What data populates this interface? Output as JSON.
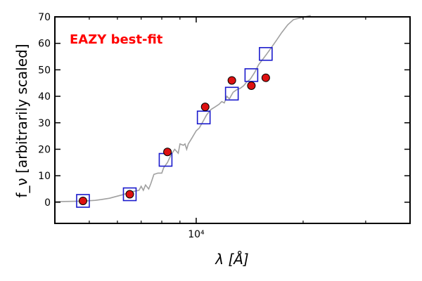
{
  "chart_data": {
    "type": "scatter",
    "title": "",
    "xlabel": "λ [Å]",
    "ylabel": "f_ν [arbitrarily scaled]",
    "x_scale": "log",
    "xlim": [
      4000,
      40000
    ],
    "ylim": [
      -8,
      70
    ],
    "y_ticks": [
      0,
      10,
      20,
      30,
      40,
      50,
      60,
      70
    ],
    "y_tick_labels": [
      "0",
      "10",
      "20",
      "30",
      "40",
      "50",
      "60",
      "70"
    ],
    "x_major_tick": {
      "value": 10000,
      "label": "10⁴"
    },
    "x_minor_ticks": [
      5000,
      6000,
      7000,
      8000,
      9000,
      20000,
      30000
    ],
    "grid": false,
    "annotation": {
      "text": "EAZY best-fit",
      "color": "#ff0000"
    },
    "colors": {
      "spectrum": "#a0a0a0",
      "observed": "#dd1111",
      "model": "#1a1acc"
    },
    "series": [
      {
        "marker": "circle",
        "points": [
          {
            "x": 4800,
            "y": 0.5
          },
          {
            "x": 6500,
            "y": 3
          },
          {
            "x": 8300,
            "y": 19
          },
          {
            "x": 10600,
            "y": 36
          },
          {
            "x": 12600,
            "y": 46
          },
          {
            "x": 14300,
            "y": 44
          },
          {
            "x": 15700,
            "y": 47
          }
        ]
      },
      {
        "marker": "square",
        "points": [
          {
            "x": 4800,
            "y": 0.5
          },
          {
            "x": 6500,
            "y": 3
          },
          {
            "x": 8200,
            "y": 16
          },
          {
            "x": 10500,
            "y": 32
          },
          {
            "x": 12600,
            "y": 41
          },
          {
            "x": 14300,
            "y": 48
          },
          {
            "x": 15700,
            "y": 56
          }
        ]
      },
      {
        "marker": "line",
        "points": [
          [
            4000,
            0.2
          ],
          [
            4400,
            0.3
          ],
          [
            4800,
            0.4
          ],
          [
            5200,
            0.7
          ],
          [
            5400,
            1
          ],
          [
            5700,
            1.5
          ],
          [
            6000,
            2.3
          ],
          [
            6200,
            2.8
          ],
          [
            6600,
            4
          ],
          [
            6900,
            4.5
          ],
          [
            7000,
            6
          ],
          [
            7100,
            4.5
          ],
          [
            7200,
            6.5
          ],
          [
            7350,
            5
          ],
          [
            7450,
            7
          ],
          [
            7600,
            10.5
          ],
          [
            7800,
            11
          ],
          [
            8000,
            11
          ],
          [
            8100,
            13
          ],
          [
            8300,
            15
          ],
          [
            8500,
            18
          ],
          [
            8700,
            20
          ],
          [
            8900,
            18.5
          ],
          [
            9000,
            22
          ],
          [
            9200,
            21.5
          ],
          [
            9300,
            22
          ],
          [
            9400,
            20
          ],
          [
            9500,
            22
          ],
          [
            9700,
            24
          ],
          [
            10000,
            27
          ],
          [
            10200,
            28
          ],
          [
            10500,
            31
          ],
          [
            10700,
            33
          ],
          [
            11000,
            35
          ],
          [
            11300,
            36
          ],
          [
            11600,
            37
          ],
          [
            11800,
            38
          ],
          [
            12000,
            37.5
          ],
          [
            12200,
            40
          ],
          [
            12400,
            39
          ],
          [
            12700,
            41.5
          ],
          [
            13000,
            42.5
          ],
          [
            13300,
            43
          ],
          [
            13600,
            44
          ],
          [
            13900,
            45.5
          ],
          [
            14200,
            46.5
          ],
          [
            14600,
            49
          ],
          [
            15000,
            52
          ],
          [
            15400,
            54
          ],
          [
            15800,
            56
          ],
          [
            16200,
            58
          ],
          [
            16800,
            61
          ],
          [
            17400,
            64
          ],
          [
            18100,
            67
          ],
          [
            18800,
            69
          ],
          [
            19500,
            69.5
          ],
          [
            20200,
            70
          ],
          [
            21000,
            70.5
          ]
        ]
      }
    ]
  }
}
